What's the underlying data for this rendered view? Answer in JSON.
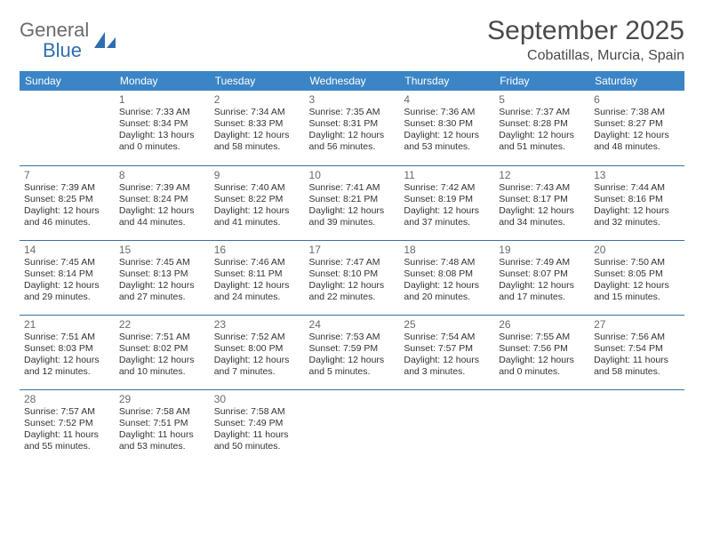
{
  "logo": {
    "word1": "General",
    "word2": "Blue"
  },
  "title": {
    "month": "September 2025",
    "location": "Cobatillas, Murcia, Spain"
  },
  "colors": {
    "header_bg": "#3b85c6",
    "header_fg": "#ffffff",
    "rule": "#3b6fa0",
    "logo_gray": "#6b6b6b",
    "logo_blue": "#2f6fb0"
  },
  "day_headers": [
    "Sunday",
    "Monday",
    "Tuesday",
    "Wednesday",
    "Thursday",
    "Friday",
    "Saturday"
  ],
  "weeks": [
    [
      null,
      {
        "n": "1",
        "sr": "7:33 AM",
        "ss": "8:34 PM",
        "dl": "13 hours and 0 minutes."
      },
      {
        "n": "2",
        "sr": "7:34 AM",
        "ss": "8:33 PM",
        "dl": "12 hours and 58 minutes."
      },
      {
        "n": "3",
        "sr": "7:35 AM",
        "ss": "8:31 PM",
        "dl": "12 hours and 56 minutes."
      },
      {
        "n": "4",
        "sr": "7:36 AM",
        "ss": "8:30 PM",
        "dl": "12 hours and 53 minutes."
      },
      {
        "n": "5",
        "sr": "7:37 AM",
        "ss": "8:28 PM",
        "dl": "12 hours and 51 minutes."
      },
      {
        "n": "6",
        "sr": "7:38 AM",
        "ss": "8:27 PM",
        "dl": "12 hours and 48 minutes."
      }
    ],
    [
      {
        "n": "7",
        "sr": "7:39 AM",
        "ss": "8:25 PM",
        "dl": "12 hours and 46 minutes."
      },
      {
        "n": "8",
        "sr": "7:39 AM",
        "ss": "8:24 PM",
        "dl": "12 hours and 44 minutes."
      },
      {
        "n": "9",
        "sr": "7:40 AM",
        "ss": "8:22 PM",
        "dl": "12 hours and 41 minutes."
      },
      {
        "n": "10",
        "sr": "7:41 AM",
        "ss": "8:21 PM",
        "dl": "12 hours and 39 minutes."
      },
      {
        "n": "11",
        "sr": "7:42 AM",
        "ss": "8:19 PM",
        "dl": "12 hours and 37 minutes."
      },
      {
        "n": "12",
        "sr": "7:43 AM",
        "ss": "8:17 PM",
        "dl": "12 hours and 34 minutes."
      },
      {
        "n": "13",
        "sr": "7:44 AM",
        "ss": "8:16 PM",
        "dl": "12 hours and 32 minutes."
      }
    ],
    [
      {
        "n": "14",
        "sr": "7:45 AM",
        "ss": "8:14 PM",
        "dl": "12 hours and 29 minutes."
      },
      {
        "n": "15",
        "sr": "7:45 AM",
        "ss": "8:13 PM",
        "dl": "12 hours and 27 minutes."
      },
      {
        "n": "16",
        "sr": "7:46 AM",
        "ss": "8:11 PM",
        "dl": "12 hours and 24 minutes."
      },
      {
        "n": "17",
        "sr": "7:47 AM",
        "ss": "8:10 PM",
        "dl": "12 hours and 22 minutes."
      },
      {
        "n": "18",
        "sr": "7:48 AM",
        "ss": "8:08 PM",
        "dl": "12 hours and 20 minutes."
      },
      {
        "n": "19",
        "sr": "7:49 AM",
        "ss": "8:07 PM",
        "dl": "12 hours and 17 minutes."
      },
      {
        "n": "20",
        "sr": "7:50 AM",
        "ss": "8:05 PM",
        "dl": "12 hours and 15 minutes."
      }
    ],
    [
      {
        "n": "21",
        "sr": "7:51 AM",
        "ss": "8:03 PM",
        "dl": "12 hours and 12 minutes."
      },
      {
        "n": "22",
        "sr": "7:51 AM",
        "ss": "8:02 PM",
        "dl": "12 hours and 10 minutes."
      },
      {
        "n": "23",
        "sr": "7:52 AM",
        "ss": "8:00 PM",
        "dl": "12 hours and 7 minutes."
      },
      {
        "n": "24",
        "sr": "7:53 AM",
        "ss": "7:59 PM",
        "dl": "12 hours and 5 minutes."
      },
      {
        "n": "25",
        "sr": "7:54 AM",
        "ss": "7:57 PM",
        "dl": "12 hours and 3 minutes."
      },
      {
        "n": "26",
        "sr": "7:55 AM",
        "ss": "7:56 PM",
        "dl": "12 hours and 0 minutes."
      },
      {
        "n": "27",
        "sr": "7:56 AM",
        "ss": "7:54 PM",
        "dl": "11 hours and 58 minutes."
      }
    ],
    [
      {
        "n": "28",
        "sr": "7:57 AM",
        "ss": "7:52 PM",
        "dl": "11 hours and 55 minutes."
      },
      {
        "n": "29",
        "sr": "7:58 AM",
        "ss": "7:51 PM",
        "dl": "11 hours and 53 minutes."
      },
      {
        "n": "30",
        "sr": "7:58 AM",
        "ss": "7:49 PM",
        "dl": "11 hours and 50 minutes."
      },
      null,
      null,
      null,
      null
    ]
  ],
  "labels": {
    "sunrise": "Sunrise:",
    "sunset": "Sunset:",
    "daylight": "Daylight:"
  }
}
